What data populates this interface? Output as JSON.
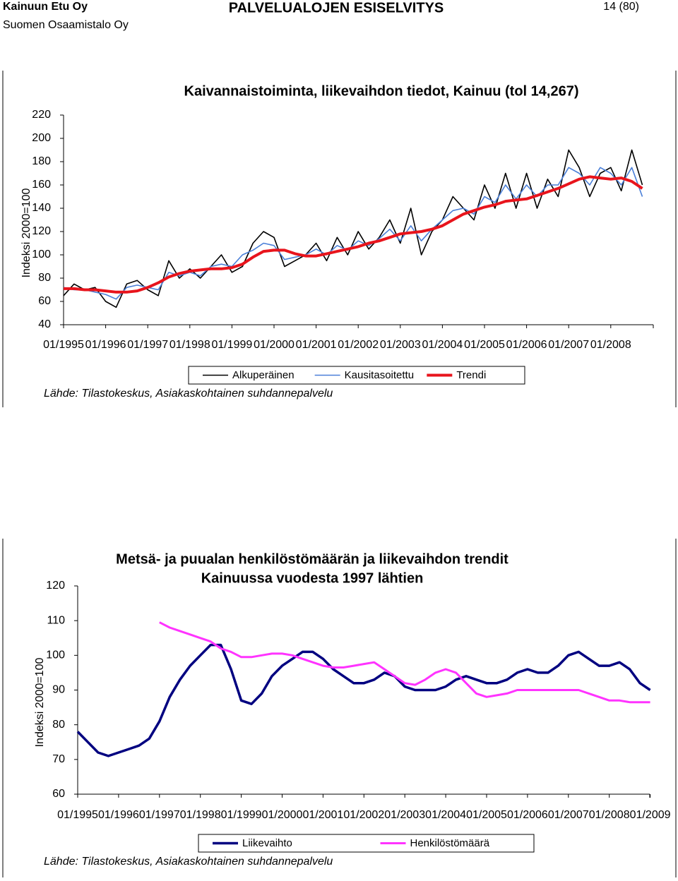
{
  "header": {
    "company": "Kainuun Etu Oy",
    "org": "Suomen Osaamistalo Oy",
    "title": "PALVELUALOJEN ESISELVITYS",
    "page": "14 (80)"
  },
  "chart_data": [
    {
      "type": "line",
      "title": "Kaivannaistoiminta, liikevaihdon tiedot, Kainuu (tol 14,267)",
      "ylabel": "Indeksi 2000=100",
      "source": "Lähde: Tilastokeskus, Asiakaskohtainen suhdannepalvelu",
      "categories": [
        "01/1995",
        null,
        null,
        null,
        "01/1996",
        null,
        null,
        null,
        "01/1997",
        null,
        null,
        null,
        "01/1998",
        null,
        null,
        null,
        "01/1999",
        null,
        null,
        null,
        "01/2000",
        null,
        null,
        null,
        "01/2001",
        null,
        null,
        null,
        "01/2002",
        null,
        null,
        null,
        "01/2003",
        null,
        null,
        null,
        "01/2004",
        null,
        null,
        null,
        "01/2005",
        null,
        null,
        null,
        "01/2006",
        null,
        null,
        null,
        "01/2007",
        null,
        null,
        null,
        "01/2008",
        null,
        null,
        null
      ],
      "series": [
        {
          "name": "Alkuperäinen",
          "color": "#000000",
          "width": 1.6,
          "values": [
            65,
            75,
            70,
            72,
            60,
            55,
            75,
            78,
            70,
            65,
            95,
            80,
            88,
            80,
            90,
            100,
            85,
            90,
            110,
            120,
            115,
            90,
            95,
            100,
            110,
            95,
            115,
            100,
            120,
            105,
            115,
            130,
            110,
            140,
            100,
            120,
            130,
            150,
            140,
            130,
            160,
            140,
            170,
            140,
            170,
            140,
            165,
            150,
            190,
            175,
            150,
            170,
            175,
            155,
            190,
            160
          ]
        },
        {
          "name": "Kausitasoitettu",
          "color": "#4a7fd8",
          "width": 1.6,
          "values": [
            72,
            70,
            70,
            68,
            66,
            62,
            72,
            74,
            72,
            70,
            85,
            82,
            85,
            82,
            90,
            92,
            90,
            100,
            104,
            110,
            108,
            96,
            98,
            100,
            105,
            100,
            108,
            104,
            112,
            108,
            114,
            122,
            112,
            125,
            112,
            122,
            130,
            138,
            140,
            135,
            150,
            145,
            160,
            148,
            160,
            150,
            160,
            160,
            175,
            170,
            160,
            175,
            170,
            160,
            175,
            150
          ]
        },
        {
          "name": "Trendi",
          "color": "#e8141c",
          "width": 4,
          "values": [
            71,
            71,
            70,
            70,
            69,
            68,
            68,
            69,
            72,
            76,
            81,
            84,
            86,
            87,
            88,
            88,
            89,
            92,
            98,
            103,
            104,
            104,
            101,
            99,
            99,
            101,
            103,
            105,
            107,
            110,
            112,
            115,
            118,
            119,
            120,
            122,
            125,
            130,
            135,
            138,
            141,
            143,
            146,
            147,
            148,
            151,
            154,
            157,
            161,
            165,
            167,
            166,
            165,
            166,
            163,
            157
          ]
        }
      ],
      "ylim": [
        40,
        220
      ],
      "yticks": [
        40,
        60,
        80,
        100,
        120,
        140,
        160,
        180,
        200,
        220
      ]
    },
    {
      "type": "line",
      "title": "Metsä- ja puualan henkilöstömäärän ja liikevaihdon trendit",
      "subtitle": "Kainuussa vuodesta 1997 lähtien",
      "ylabel": "Indeksi 2000=100",
      "source": "Lähde: Tilastokeskus, Asiakaskohtainen suhdannepalvelu",
      "categories": [
        "01/1995",
        null,
        null,
        null,
        "01/1996",
        null,
        null,
        null,
        "01/1997",
        null,
        null,
        null,
        "01/1998",
        null,
        null,
        null,
        "01/1999",
        null,
        null,
        null,
        "01/2000",
        null,
        null,
        null,
        "01/2001",
        null,
        null,
        null,
        "01/2002",
        null,
        null,
        null,
        "01/2003",
        null,
        null,
        null,
        "01/2004",
        null,
        null,
        null,
        "01/2005",
        null,
        null,
        null,
        "01/2006",
        null,
        null,
        null,
        "01/2007",
        null,
        null,
        null,
        "01/2008",
        null,
        null,
        null,
        "01/2009"
      ],
      "series": [
        {
          "name": "Liikevaihto",
          "color": "#000080",
          "width": 3.5,
          "values": [
            78,
            75,
            72,
            71,
            72,
            73,
            74,
            76,
            81,
            88,
            93,
            97,
            100,
            103,
            103,
            96,
            87,
            86,
            89,
            94,
            97,
            99,
            101,
            101,
            99,
            96,
            94,
            92,
            92,
            93,
            95,
            94,
            91,
            90,
            90,
            90,
            91,
            93,
            94,
            93,
            92,
            92,
            93,
            95,
            96,
            95,
            95,
            97,
            100,
            101,
            99,
            97,
            97,
            98,
            96,
            92,
            90
          ]
        },
        {
          "name": "Henkilöstömäärä",
          "color": "#ff33ff",
          "width": 3,
          "values": [
            null,
            null,
            null,
            null,
            null,
            null,
            null,
            null,
            109.5,
            108,
            107,
            106,
            105,
            104,
            102,
            101,
            99.5,
            99.5,
            100,
            100.5,
            100.5,
            100,
            99,
            98,
            97,
            96.5,
            96.5,
            97,
            97.5,
            98,
            96,
            94,
            92,
            91.5,
            93,
            95,
            96,
            95,
            92,
            89,
            88,
            88.5,
            89,
            90,
            90,
            90,
            90,
            90,
            90,
            90,
            89,
            88,
            87,
            87,
            86.5,
            86.5,
            86.5
          ]
        }
      ],
      "ylim": [
        60,
        120
      ],
      "yticks": [
        60,
        70,
        80,
        90,
        100,
        110,
        120
      ]
    }
  ]
}
